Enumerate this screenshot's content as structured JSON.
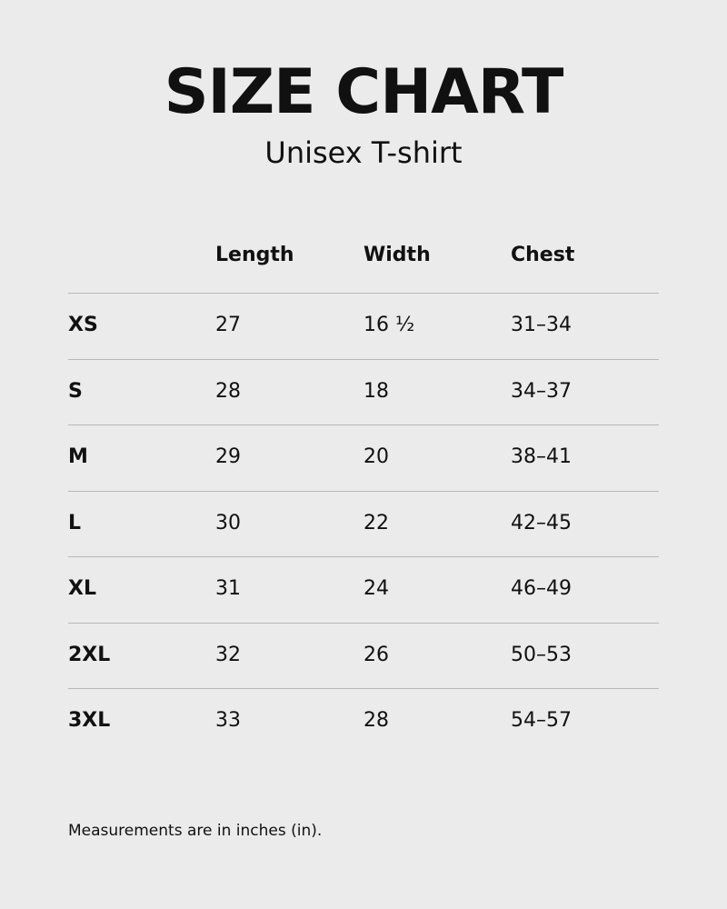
{
  "header": {
    "title": "SIZE CHART",
    "subtitle": "Unisex T-shirt"
  },
  "table": {
    "columns": [
      "Length",
      "Width",
      "Chest"
    ],
    "rows": [
      [
        "XS",
        "27",
        "16 ½",
        "31–34"
      ],
      [
        "S",
        "28",
        "18",
        "34–37"
      ],
      [
        "M",
        "29",
        "20",
        "38–41"
      ],
      [
        "L",
        "30",
        "22",
        "42–45"
      ],
      [
        "XL",
        "31",
        "24",
        "46–49"
      ],
      [
        "2XL",
        "32",
        "26",
        "50–53"
      ],
      [
        "3XL",
        "33",
        "28",
        "54–57"
      ]
    ]
  },
  "footer": {
    "note": "Measurements are in inches (in)."
  }
}
